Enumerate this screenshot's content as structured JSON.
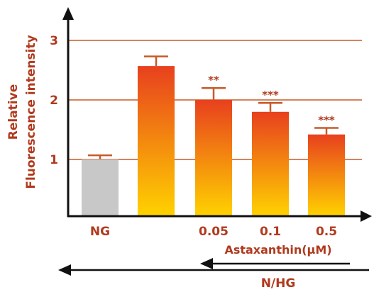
{
  "colors": {
    "text": "#B03A1E",
    "grid": "#C85A28",
    "axis": "#111111",
    "control_bar": "#C8C8C8",
    "bar_top": "#E8401E",
    "bar_bottom": "#FFD200",
    "arrow": "#111111"
  },
  "chart_data": {
    "type": "bar",
    "ylabel_lines": [
      "Relative",
      "Fluorescence intensity"
    ],
    "ylim": [
      0.2,
      3.5
    ],
    "yticks": [
      1,
      2,
      3
    ],
    "grid": true,
    "categories": [
      "NG",
      "",
      "0.05",
      "0.1",
      "0.5"
    ],
    "values": [
      1.0,
      2.57,
      2.0,
      1.8,
      1.42
    ],
    "errors": [
      0.07,
      0.16,
      0.2,
      0.15,
      0.11
    ],
    "significance": [
      "",
      "",
      "**",
      "***",
      "***"
    ],
    "bar_styles": [
      "control",
      "treated",
      "treated",
      "treated",
      "treated"
    ],
    "group_label_1": "Astaxanthin(μM)",
    "group_label_2": "N/HG"
  }
}
